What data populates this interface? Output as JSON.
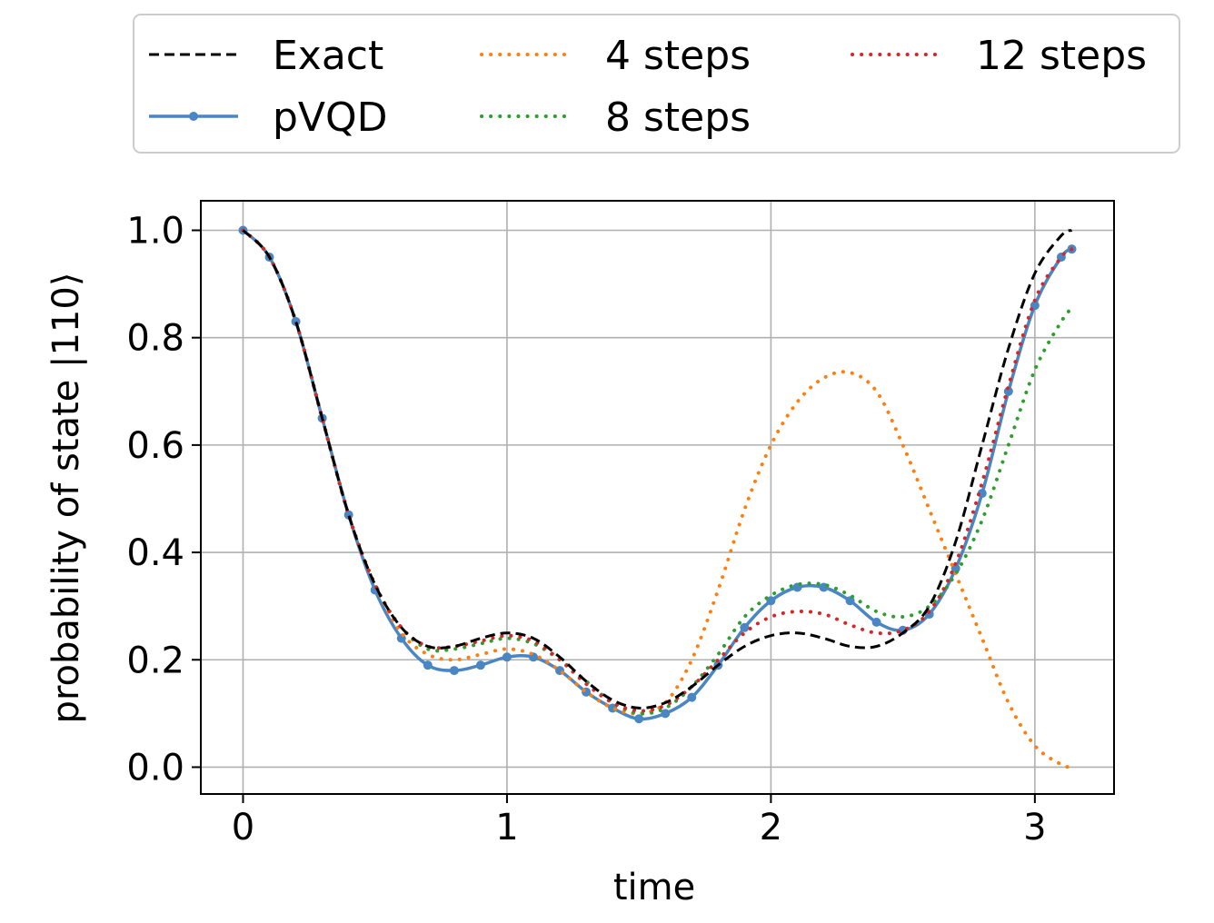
{
  "chart_data": {
    "type": "line",
    "xlabel": "time",
    "ylabel": "probability of state |110⟩",
    "xlim": [
      -0.16,
      3.3
    ],
    "ylim": [
      -0.05,
      1.055
    ],
    "xticks": [
      0,
      1,
      2,
      3
    ],
    "yticks": [
      0.0,
      0.2,
      0.4,
      0.6,
      0.8,
      1.0
    ],
    "xtick_labels": [
      "0",
      "1",
      "2",
      "3"
    ],
    "ytick_labels": [
      "0.0",
      "0.2",
      "0.4",
      "0.6",
      "0.8",
      "1.0"
    ],
    "grid": true,
    "legend": {
      "position": "top-outside",
      "columns": 3
    },
    "series": [
      {
        "name": "Exact",
        "color": "#000000",
        "style": "dashed",
        "x": [
          0,
          0.1,
          0.2,
          0.3,
          0.4,
          0.5,
          0.6,
          0.7,
          0.8,
          0.9,
          1.0,
          1.1,
          1.2,
          1.3,
          1.4,
          1.5,
          1.6,
          1.7,
          1.8,
          1.9,
          2.0,
          2.1,
          2.2,
          2.3,
          2.4,
          2.5,
          2.6,
          2.7,
          2.8,
          2.9,
          3.0,
          3.1,
          3.14
        ],
        "y": [
          1.0,
          0.95,
          0.83,
          0.65,
          0.47,
          0.34,
          0.26,
          0.225,
          0.225,
          0.24,
          0.25,
          0.24,
          0.205,
          0.16,
          0.125,
          0.11,
          0.12,
          0.15,
          0.19,
          0.225,
          0.245,
          0.25,
          0.24,
          0.225,
          0.225,
          0.25,
          0.3,
          0.42,
          0.6,
          0.78,
          0.92,
          0.99,
          1.0
        ]
      },
      {
        "name": "pVQD",
        "color": "#4a86c4",
        "style": "solid-markers",
        "x": [
          0,
          0.1,
          0.2,
          0.3,
          0.4,
          0.5,
          0.6,
          0.7,
          0.8,
          0.9,
          1.0,
          1.1,
          1.2,
          1.3,
          1.4,
          1.5,
          1.6,
          1.7,
          1.8,
          1.9,
          2.0,
          2.1,
          2.2,
          2.3,
          2.4,
          2.5,
          2.6,
          2.7,
          2.8,
          2.9,
          3.0,
          3.1,
          3.14
        ],
        "y": [
          1.0,
          0.95,
          0.83,
          0.65,
          0.47,
          0.33,
          0.24,
          0.19,
          0.18,
          0.19,
          0.205,
          0.205,
          0.18,
          0.14,
          0.11,
          0.09,
          0.1,
          0.13,
          0.19,
          0.26,
          0.31,
          0.335,
          0.335,
          0.31,
          0.27,
          0.255,
          0.285,
          0.37,
          0.51,
          0.7,
          0.86,
          0.95,
          0.965
        ]
      },
      {
        "name": "4 steps",
        "color": "#ff7f0e",
        "style": "dotted",
        "x": [
          0,
          0.1,
          0.2,
          0.3,
          0.4,
          0.5,
          0.6,
          0.7,
          0.8,
          0.9,
          1.0,
          1.1,
          1.2,
          1.3,
          1.4,
          1.5,
          1.6,
          1.7,
          1.8,
          1.9,
          2.0,
          2.1,
          2.2,
          2.3,
          2.4,
          2.5,
          2.6,
          2.7,
          2.8,
          2.9,
          3.0,
          3.1,
          3.14
        ],
        "y": [
          1.0,
          0.95,
          0.83,
          0.65,
          0.47,
          0.34,
          0.25,
          0.21,
          0.2,
          0.21,
          0.22,
          0.21,
          0.18,
          0.14,
          0.11,
          0.1,
          0.12,
          0.2,
          0.33,
          0.48,
          0.6,
          0.68,
          0.725,
          0.735,
          0.7,
          0.6,
          0.48,
          0.36,
          0.24,
          0.12,
          0.04,
          0.005,
          0.0
        ]
      },
      {
        "name": "8 steps",
        "color": "#2ca02c",
        "style": "dotted",
        "x": [
          0,
          0.1,
          0.2,
          0.3,
          0.4,
          0.5,
          0.6,
          0.7,
          0.8,
          0.9,
          1.0,
          1.1,
          1.2,
          1.3,
          1.4,
          1.5,
          1.6,
          1.7,
          1.8,
          1.9,
          2.0,
          2.1,
          2.2,
          2.3,
          2.4,
          2.5,
          2.6,
          2.7,
          2.8,
          2.9,
          3.0,
          3.1,
          3.14
        ],
        "y": [
          1.0,
          0.95,
          0.83,
          0.65,
          0.47,
          0.34,
          0.26,
          0.22,
          0.22,
          0.23,
          0.24,
          0.23,
          0.2,
          0.16,
          0.12,
          0.1,
          0.11,
          0.15,
          0.21,
          0.28,
          0.32,
          0.34,
          0.34,
          0.32,
          0.29,
          0.28,
          0.3,
          0.36,
          0.46,
          0.6,
          0.74,
          0.83,
          0.855
        ]
      },
      {
        "name": "12 steps",
        "color": "#d62728",
        "style": "dotted",
        "x": [
          0,
          0.1,
          0.2,
          0.3,
          0.4,
          0.5,
          0.6,
          0.7,
          0.8,
          0.9,
          1.0,
          1.1,
          1.2,
          1.3,
          1.4,
          1.5,
          1.6,
          1.7,
          1.8,
          1.9,
          2.0,
          2.1,
          2.2,
          2.3,
          2.4,
          2.5,
          2.6,
          2.7,
          2.8,
          2.9,
          3.0,
          3.1,
          3.14
        ],
        "y": [
          1.0,
          0.95,
          0.83,
          0.65,
          0.47,
          0.34,
          0.26,
          0.225,
          0.225,
          0.235,
          0.245,
          0.235,
          0.2,
          0.155,
          0.12,
          0.105,
          0.115,
          0.15,
          0.2,
          0.25,
          0.28,
          0.29,
          0.285,
          0.265,
          0.25,
          0.255,
          0.29,
          0.38,
          0.53,
          0.71,
          0.87,
          0.95,
          0.965
        ]
      }
    ]
  }
}
